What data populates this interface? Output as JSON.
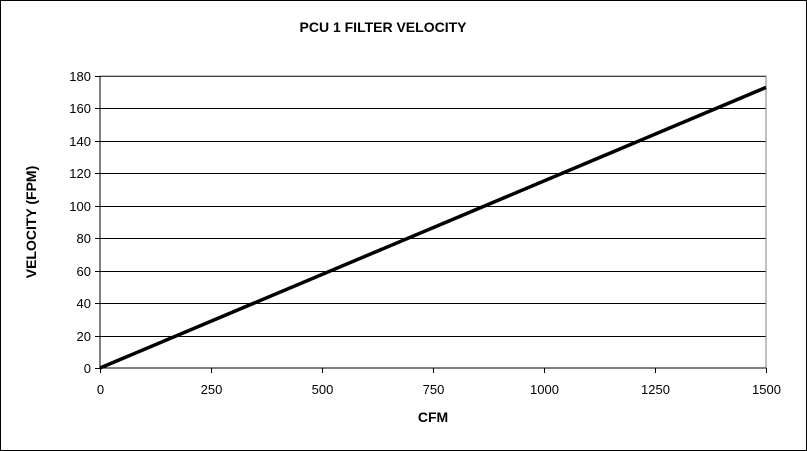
{
  "chart_data": {
    "type": "line",
    "title": "PCU 1 FILTER VELOCITY",
    "xlabel": "CFM",
    "ylabel": "VELOCITY (FPM)",
    "xlim": [
      0,
      1500
    ],
    "ylim": [
      0,
      180
    ],
    "x_ticks": [
      "0",
      "250",
      "500",
      "750",
      "1000",
      "1250",
      "1500"
    ],
    "y_ticks": [
      "0",
      "20",
      "40",
      "60",
      "80",
      "100",
      "120",
      "140",
      "160",
      "180"
    ],
    "grid": "horizontal",
    "legend": "none",
    "series": [
      {
        "x": [
          0,
          1500
        ],
        "y": [
          0,
          173
        ],
        "color": "#000000"
      }
    ]
  }
}
